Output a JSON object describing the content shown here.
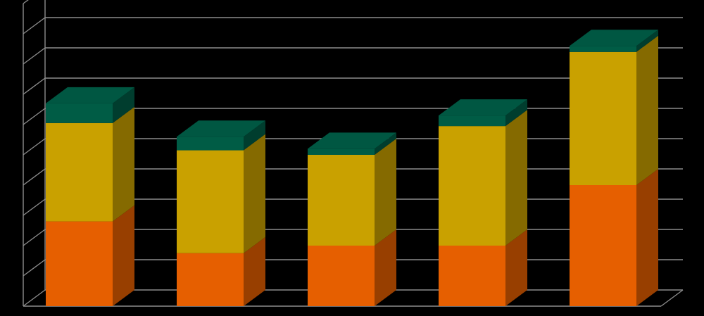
{
  "chart_data": {
    "type": "bar",
    "stacked": true,
    "three_d": true,
    "grid": true,
    "legend": "none",
    "title": "",
    "xlabel": "",
    "ylabel": "",
    "ylim": [
      0,
      10
    ],
    "categories": [
      "",
      "",
      "",
      "",
      ""
    ],
    "series": [
      {
        "values": [
          2.8,
          1.75,
          2.0,
          2.0,
          4.0
        ],
        "color": "#E65F00"
      },
      {
        "values": [
          3.25,
          3.4,
          3.0,
          3.95,
          4.4
        ],
        "color": "#C9A100"
      },
      {
        "values": [
          0.65,
          0.45,
          0.2,
          0.35,
          0.2
        ],
        "color": "#005C45"
      }
    ]
  }
}
